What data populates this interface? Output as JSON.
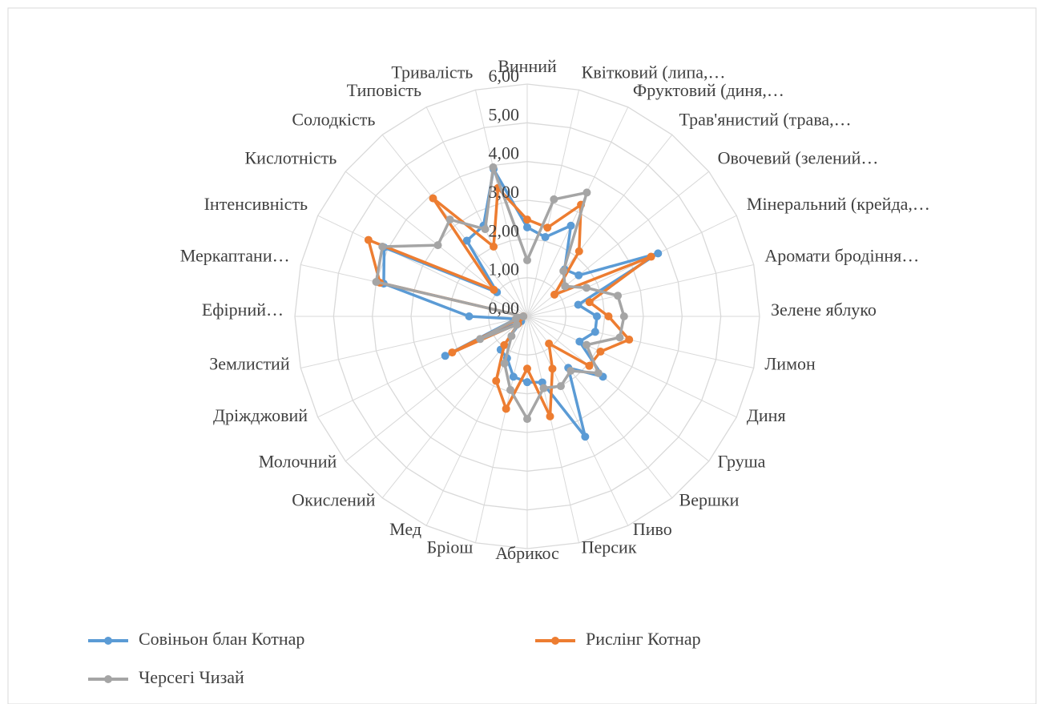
{
  "chart_data": {
    "type": "radar",
    "categories": [
      "Винний",
      "Квітковий (липа,…",
      "Фруктовий (диня,…",
      "Трав'янистий (трава,…",
      "Овочевий (зелений…",
      "Мінеральний (крейда,…",
      "Аромати бродіння…",
      "Зелене яблуко",
      "Лимон",
      "Диня",
      "Груша",
      "Вершки",
      "Пиво",
      "Персик",
      "Абрикос",
      "Бріош",
      "Мед",
      "Окислений",
      "Молочний",
      "Дріжджовий",
      "Землистий",
      "Ефірний…",
      "Меркаптани…",
      "Інтенсивність",
      "Кислотність",
      "Солодкість",
      "Типовість",
      "Тривалість"
    ],
    "series": [
      {
        "name": "Совіньон блан Котнар",
        "color": "#5b9bd5",
        "values": [
          2.3,
          2.1,
          2.6,
          1.55,
          1.7,
          3.75,
          1.35,
          1.8,
          1.8,
          1.5,
          2.5,
          1.7,
          3.45,
          1.75,
          1.7,
          1.6,
          1.2,
          1.1,
          0.2,
          2.35,
          0.3,
          1.5,
          3.8,
          4.1,
          1.0,
          2.5,
          2.6,
          3.9
        ]
      },
      {
        "name": "Рислінг Котнар",
        "color": "#ed7d31",
        "values": [
          2.5,
          2.35,
          3.2,
          2.15,
          0.9,
          3.55,
          1.65,
          2.1,
          2.7,
          2.1,
          2.05,
          0.9,
          1.5,
          2.65,
          1.35,
          2.45,
          1.85,
          0.95,
          0.3,
          2.15,
          0.2,
          0.1,
          3.9,
          4.55,
          1.1,
          3.9,
          2.0,
          3.4
        ]
      },
      {
        "name": "Черсегі Чизай",
        "color": "#a5a5a5",
        "values": [
          1.45,
          3.1,
          3.55,
          1.5,
          1.25,
          1.7,
          2.4,
          2.5,
          2.45,
          1.7,
          2.35,
          1.8,
          2.0,
          1.9,
          2.65,
          1.95,
          1.35,
          0.65,
          0.35,
          1.35,
          0.3,
          0.1,
          4.0,
          4.15,
          2.95,
          3.2,
          2.5,
          3.95
        ]
      }
    ],
    "ylim": [
      0,
      6
    ],
    "yticks": [
      {
        "value": 0,
        "label": "0,00"
      },
      {
        "value": 1,
        "label": "1,00"
      },
      {
        "value": 2,
        "label": "2,00"
      },
      {
        "value": 3,
        "label": "3,00"
      },
      {
        "value": 4,
        "label": "4,00"
      },
      {
        "value": 5,
        "label": "5,00"
      },
      {
        "value": 6,
        "label": "6,00"
      }
    ],
    "grid": true,
    "legend": "bottom"
  }
}
